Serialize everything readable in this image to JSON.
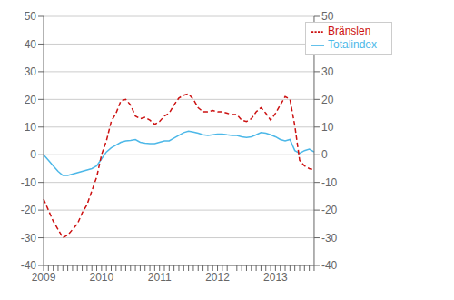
{
  "chart_data": {
    "type": "line",
    "categories": [
      "2009",
      null,
      null,
      null,
      null,
      null,
      null,
      null,
      null,
      null,
      null,
      null,
      "2010",
      null,
      null,
      null,
      null,
      null,
      null,
      null,
      null,
      null,
      null,
      null,
      "2011",
      null,
      null,
      null,
      null,
      null,
      null,
      null,
      null,
      null,
      null,
      null,
      "2012",
      null,
      null,
      null,
      null,
      null,
      null,
      null,
      null,
      null,
      null,
      null,
      "2013",
      null,
      null,
      null,
      null,
      null,
      null,
      null,
      null
    ],
    "series": [
      {
        "name": "Totalindex",
        "color": "#4db8e8",
        "line_style": "solid",
        "values": [
          0.0,
          -2.0,
          -4.0,
          -6.0,
          -7.5,
          -7.5,
          -7.0,
          -6.5,
          -6.0,
          -5.5,
          -5.0,
          -4.0,
          -1.5,
          1.0,
          2.5,
          3.5,
          4.5,
          5.0,
          5.2,
          5.5,
          4.5,
          4.2,
          4.0,
          4.0,
          4.5,
          5.0,
          5.0,
          6.0,
          7.0,
          8.0,
          8.5,
          8.2,
          7.8,
          7.2,
          7.0,
          7.2,
          7.5,
          7.5,
          7.2,
          7.0,
          7.0,
          6.5,
          6.2,
          6.5,
          7.2,
          8.0,
          7.8,
          7.2,
          6.5,
          5.5,
          5.0,
          5.5,
          1.5,
          0.5,
          1.5,
          2.0,
          1.0
        ]
      },
      {
        "name": "Bränslen",
        "color": "#cc1111",
        "line_style": "dashed",
        "values": [
          -16.0,
          -20.0,
          -24.0,
          -27.0,
          -30.0,
          -29.0,
          -27.0,
          -25.0,
          -21.0,
          -18.0,
          -13.0,
          -8.0,
          0.0,
          5.0,
          12.0,
          15.0,
          19.5,
          20.0,
          18.0,
          14.0,
          13.0,
          13.5,
          12.5,
          11.0,
          12.0,
          14.0,
          15.0,
          18.0,
          20.5,
          21.5,
          22.0,
          20.0,
          17.0,
          15.5,
          15.5,
          16.0,
          15.5,
          15.5,
          15.0,
          14.5,
          14.5,
          12.5,
          12.0,
          13.0,
          15.5,
          17.0,
          15.0,
          12.5,
          15.0,
          18.0,
          21.0,
          20.0,
          10.5,
          -2.0,
          -4.0,
          -5.0,
          -5.5
        ]
      }
    ],
    "ylim": [
      -40,
      50
    ],
    "yticks": [
      -40,
      -30,
      -20,
      -10,
      0,
      10,
      20,
      30,
      40,
      50
    ],
    "y2lim": [
      -40,
      50
    ],
    "y2ticks": [
      -40,
      -30,
      -20,
      -10,
      0,
      10,
      20,
      30,
      40,
      50
    ],
    "grid": true,
    "legend": "upper right"
  }
}
